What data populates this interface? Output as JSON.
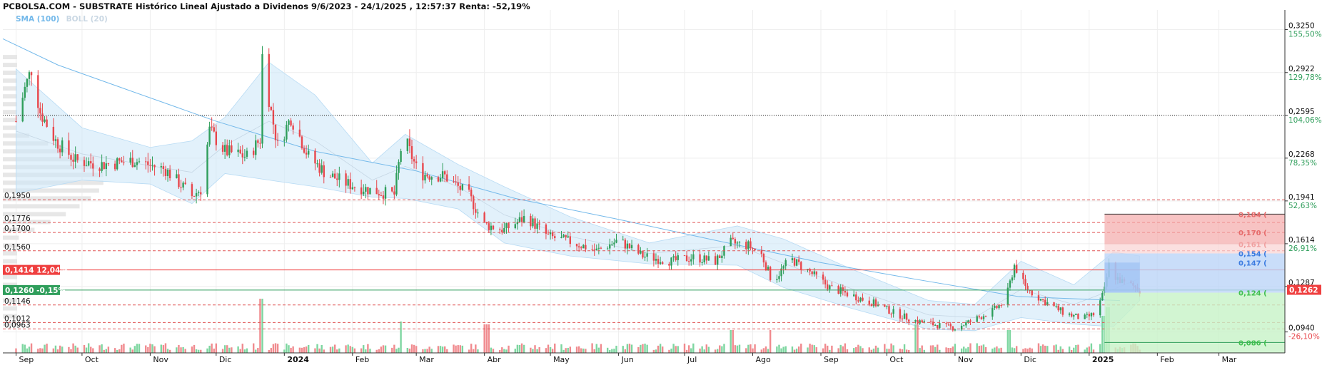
{
  "title": "PCBOLSA.COM - SUBSTRATE Histórico Lineal Ajustado a Dividenos 9/6/2023 - 24/1/2025 , 12:57:37 Renta: -52,19%",
  "legend": {
    "sma": "SMA (100)",
    "boll": "BOLL (20)"
  },
  "colors": {
    "up": "#2f9e5b",
    "down": "#e8474d",
    "sma": "#74b9ea",
    "band": "#cfe8f9",
    "grid": "#eeeeee",
    "dashed_level": "#e05555",
    "target": "#2f9e5b",
    "stop": "#ef3f3f",
    "axis_pct_up": "#2f9e5b",
    "axis_pct_down": "#e8474d"
  },
  "x_axis": {
    "labels": [
      "Sep",
      "Oct",
      "Nov",
      "Dic",
      "2024",
      "Feb",
      "Mar",
      "Abr",
      "May",
      "Jun",
      "Jul",
      "Ago",
      "Sep",
      "Oct",
      "Nov",
      "Dic",
      "2025",
      "Feb",
      "Mar"
    ],
    "bold": [
      "2024",
      "2025"
    ]
  },
  "right_axis": [
    {
      "price": "0,3250",
      "pct": "155,50%",
      "v": 0.325
    },
    {
      "price": "0,2922",
      "pct": "129,78%",
      "v": 0.2922
    },
    {
      "price": "0,2595",
      "pct": "104,06%",
      "v": 0.2595
    },
    {
      "price": "0,2268",
      "pct": "78,35%",
      "v": 0.2268
    },
    {
      "price": "0,1941",
      "pct": "52,63%",
      "v": 0.1941
    },
    {
      "price": "0,1614",
      "pct": "26,91%",
      "v": 0.1614
    },
    {
      "price": "0,1287",
      "pct": "1,19%",
      "v": 0.1287
    },
    {
      "price": "0,0940",
      "pct": "-26,10%",
      "v": 0.094
    }
  ],
  "left_levels": [
    {
      "label": "0,1950",
      "v": 0.195
    },
    {
      "label": "0,1776",
      "v": 0.1776
    },
    {
      "label": "0,1700",
      "v": 0.17
    },
    {
      "label": "0,1560",
      "v": 0.156
    },
    {
      "label": "0,1146",
      "v": 0.1146
    },
    {
      "label": "0,1012",
      "v": 0.1012
    },
    {
      "label": "0,0963",
      "v": 0.0963
    }
  ],
  "badges": {
    "resistance": {
      "label": "0,1414",
      "pct": "12,04%",
      "v": 0.1414
    },
    "support": {
      "label": "0,1260",
      "pct": "-0,15%",
      "v": 0.126
    },
    "last": {
      "label": "0,1262",
      "v": 0.1262
    }
  },
  "dotted_level": 0.2595,
  "target_levels": [
    {
      "label": "0,184 (",
      "v": 0.184
    },
    {
      "label": "0,170 (",
      "v": 0.17
    },
    {
      "label": "0,161 (",
      "v": 0.161
    },
    {
      "label": "0,154 (",
      "v": 0.154
    },
    {
      "label": "0,147 (",
      "v": 0.147
    },
    {
      "label": "0,124 (",
      "v": 0.124
    },
    {
      "label": "0,086 (",
      "v": 0.086
    }
  ],
  "chart_data": {
    "type": "candlestick",
    "instrument": "SUBSTRATE",
    "y_range": [
      0.078,
      0.34
    ],
    "x_range": [
      "2023-08-26",
      "2025-03-31"
    ],
    "close_series": [
      [
        "2023-09-01",
        0.255
      ],
      [
        "2023-09-05",
        0.28
      ],
      [
        "2023-09-08",
        0.295
      ],
      [
        "2023-09-12",
        0.262
      ],
      [
        "2023-09-19",
        0.24
      ],
      [
        "2023-09-28",
        0.225
      ],
      [
        "2023-10-10",
        0.222
      ],
      [
        "2023-10-25",
        0.225
      ],
      [
        "2023-11-08",
        0.218
      ],
      [
        "2023-11-20",
        0.198
      ],
      [
        "2023-11-24",
        0.203
      ],
      [
        "2023-11-28",
        0.248
      ],
      [
        "2023-12-05",
        0.232
      ],
      [
        "2023-12-15",
        0.228
      ],
      [
        "2023-12-21",
        0.241
      ],
      [
        "2023-12-22",
        0.305
      ],
      [
        "2023-12-26",
        0.262
      ],
      [
        "2023-12-29",
        0.236
      ],
      [
        "2024-01-04",
        0.258
      ],
      [
        "2024-01-12",
        0.228
      ],
      [
        "2024-01-20",
        0.215
      ],
      [
        "2024-01-30",
        0.207
      ],
      [
        "2024-02-10",
        0.202
      ],
      [
        "2024-02-20",
        0.199
      ],
      [
        "2024-02-24",
        0.245
      ],
      [
        "2024-03-02",
        0.215
      ],
      [
        "2024-03-14",
        0.213
      ],
      [
        "2024-03-25",
        0.198
      ],
      [
        "2024-04-01",
        0.176
      ],
      [
        "2024-04-10",
        0.172
      ],
      [
        "2024-04-20",
        0.182
      ],
      [
        "2024-04-30",
        0.167
      ],
      [
        "2024-05-10",
        0.163
      ],
      [
        "2024-05-22",
        0.156
      ],
      [
        "2024-06-01",
        0.164
      ],
      [
        "2024-06-12",
        0.152
      ],
      [
        "2024-06-25",
        0.148
      ],
      [
        "2024-07-05",
        0.151
      ],
      [
        "2024-07-15",
        0.148
      ],
      [
        "2024-07-22",
        0.162
      ],
      [
        "2024-07-30",
        0.16
      ],
      [
        "2024-08-05",
        0.153
      ],
      [
        "2024-08-10",
        0.132
      ],
      [
        "2024-08-18",
        0.15
      ],
      [
        "2024-08-26",
        0.141
      ],
      [
        "2024-09-05",
        0.128
      ],
      [
        "2024-09-15",
        0.122
      ],
      [
        "2024-09-25",
        0.116
      ],
      [
        "2024-10-05",
        0.108
      ],
      [
        "2024-10-15",
        0.102
      ],
      [
        "2024-10-25",
        0.099
      ],
      [
        "2024-11-01",
        0.097
      ],
      [
        "2024-11-08",
        0.102
      ],
      [
        "2024-11-18",
        0.11
      ],
      [
        "2024-11-24",
        0.118
      ],
      [
        "2024-11-28",
        0.145
      ],
      [
        "2024-12-03",
        0.128
      ],
      [
        "2024-12-10",
        0.119
      ],
      [
        "2024-12-20",
        0.109
      ],
      [
        "2024-12-29",
        0.104
      ],
      [
        "2025-01-04",
        0.108
      ],
      [
        "2025-01-08",
        0.126
      ],
      [
        "2025-01-10",
        0.145
      ],
      [
        "2025-01-13",
        0.136
      ],
      [
        "2025-01-17",
        0.131
      ],
      [
        "2025-01-21",
        0.129
      ],
      [
        "2025-01-24",
        0.1262
      ]
    ],
    "sma_100": [
      [
        "2023-08-26",
        0.318
      ],
      [
        "2023-09-20",
        0.298
      ],
      [
        "2023-10-20",
        0.28
      ],
      [
        "2023-12-01",
        0.255
      ],
      [
        "2024-01-15",
        0.232
      ],
      [
        "2024-03-01",
        0.217
      ],
      [
        "2024-04-15",
        0.196
      ],
      [
        "2024-06-01",
        0.18
      ],
      [
        "2024-07-15",
        0.164
      ],
      [
        "2024-09-01",
        0.147
      ],
      [
        "2024-10-15",
        0.134
      ],
      [
        "2024-11-30",
        0.121
      ],
      [
        "2025-01-15",
        0.118
      ]
    ],
    "bollinger_20": [
      [
        "2023-09-01",
        0.2,
        0.295
      ],
      [
        "2023-10-01",
        0.21,
        0.25
      ],
      [
        "2023-11-01",
        0.207,
        0.235
      ],
      [
        "2023-11-20",
        0.192,
        0.24
      ],
      [
        "2023-12-05",
        0.215,
        0.258
      ],
      [
        "2023-12-25",
        0.21,
        0.3
      ],
      [
        "2024-01-15",
        0.205,
        0.275
      ],
      [
        "2024-02-10",
        0.197,
        0.223
      ],
      [
        "2024-02-25",
        0.196,
        0.245
      ],
      [
        "2024-03-20",
        0.188,
        0.222
      ],
      [
        "2024-04-10",
        0.162,
        0.205
      ],
      [
        "2024-05-10",
        0.152,
        0.182
      ],
      [
        "2024-06-15",
        0.146,
        0.162
      ],
      [
        "2024-07-25",
        0.145,
        0.175
      ],
      [
        "2024-08-15",
        0.128,
        0.165
      ],
      [
        "2024-09-15",
        0.112,
        0.142
      ],
      [
        "2024-10-20",
        0.096,
        0.118
      ],
      [
        "2024-11-10",
        0.095,
        0.115
      ],
      [
        "2024-12-01",
        0.105,
        0.148
      ],
      [
        "2024-12-25",
        0.1,
        0.13
      ],
      [
        "2025-01-12",
        0.098,
        0.155
      ],
      [
        "2025-01-24",
        0.118,
        0.152
      ]
    ],
    "volume_peaks": [
      [
        "2023-12-22",
        0.95
      ],
      [
        "2024-02-24",
        0.55
      ],
      [
        "2024-04-02",
        0.5
      ],
      [
        "2024-07-22",
        0.4
      ],
      [
        "2024-08-10",
        0.4
      ],
      [
        "2024-10-14",
        0.5
      ],
      [
        "2024-11-25",
        0.4
      ],
      [
        "2025-01-08",
        0.65
      ],
      [
        "2025-01-10",
        0.8
      ]
    ]
  }
}
